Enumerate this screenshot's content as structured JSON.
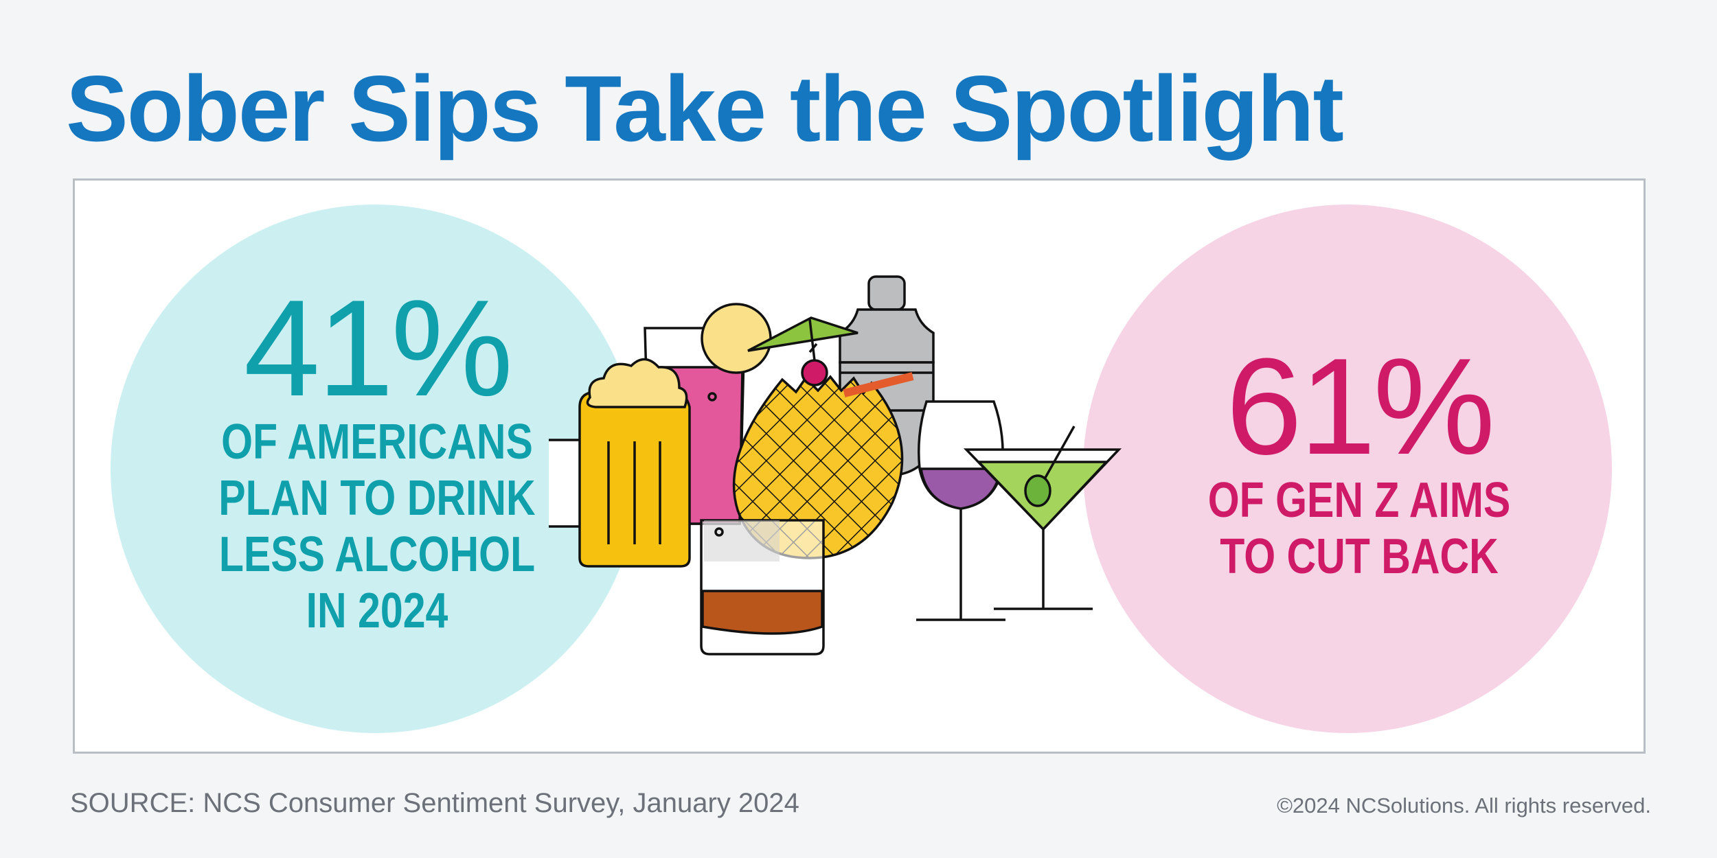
{
  "title": "Sober Sips Take the Spotlight",
  "left_stat": {
    "percent": "41%",
    "lines": [
      "OF AMERICANS",
      "PLAN TO DRINK",
      "LESS ALCOHOL",
      "IN 2024"
    ]
  },
  "right_stat": {
    "percent": "61%",
    "lines": [
      "OF GEN Z AIMS",
      "TO CUT BACK"
    ]
  },
  "source": "SOURCE: NCS Consumer Sentiment Survey, January 2024",
  "copyright": "©2024 NCSolutions. All rights reserved.",
  "colors": {
    "title": "#1577c0",
    "teal": "#0fa0ac",
    "teal_circle": "#ccf0f2",
    "magenta": "#cf1a68",
    "pink_circle": "#f6d3e5",
    "beer": "#f6c20f",
    "foam": "#fbe08a",
    "pink_drink": "#e3589a",
    "whiskey": "#b8561c",
    "pineapple": "#f8c628",
    "wine": "#9a5aa8",
    "martini": "#a4d45c",
    "shaker": "#bcbdbf"
  },
  "illustration": {
    "icons": [
      "beer-mug-icon",
      "pink-cocktail-icon",
      "whiskey-glass-icon",
      "pineapple-drink-icon",
      "cocktail-shaker-icon",
      "wine-glass-icon",
      "martini-glass-icon"
    ]
  }
}
